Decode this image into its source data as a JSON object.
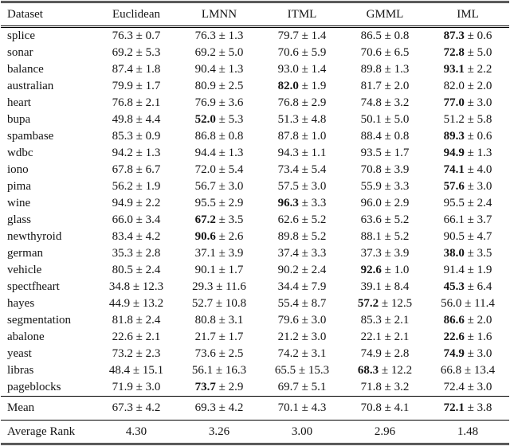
{
  "table": {
    "columns": [
      "Dataset",
      "Euclidean",
      "LMNN",
      "ITML",
      "GMML",
      "IML"
    ],
    "plus_minus": "±",
    "rows": [
      {
        "dataset": "splice",
        "values": [
          "76.3 ± 0.7",
          "76.3 ± 1.3",
          "79.7 ± 1.4",
          "86.5 ± 0.8",
          "87.3 ± 0.6"
        ],
        "bold": 4
      },
      {
        "dataset": "sonar",
        "values": [
          "69.2 ± 5.3",
          "69.2 ± 5.0",
          "70.6 ± 5.9",
          "70.6 ± 6.5",
          "72.8 ± 5.0"
        ],
        "bold": 4
      },
      {
        "dataset": "balance",
        "values": [
          "87.4 ± 1.8",
          "90.4 ± 1.3",
          "93.0 ± 1.4",
          "89.8 ± 1.3",
          "93.1 ± 2.2"
        ],
        "bold": 4
      },
      {
        "dataset": "australian",
        "values": [
          "79.9 ± 1.7",
          "80.9 ± 2.5",
          "82.0 ± 1.9",
          "81.7 ± 2.0",
          "82.0 ± 2.0"
        ],
        "bold": 2
      },
      {
        "dataset": "heart",
        "values": [
          "76.8 ± 2.1",
          "76.9 ± 3.6",
          "76.8 ± 2.9",
          "74.8 ± 3.2",
          "77.0 ± 3.0"
        ],
        "bold": 4
      },
      {
        "dataset": "bupa",
        "values": [
          "49.8 ± 4.4",
          "52.0 ± 5.3",
          "51.3 ± 4.8",
          "50.1 ± 5.0",
          "51.2 ± 5.8"
        ],
        "bold": 1
      },
      {
        "dataset": "spambase",
        "values": [
          "85.3 ± 0.9",
          "86.8 ± 0.8",
          "87.8 ± 1.0",
          "88.4 ± 0.8",
          "89.3 ± 0.6"
        ],
        "bold": 4
      },
      {
        "dataset": "wdbc",
        "values": [
          "94.2 ± 1.3",
          "94.4 ± 1.3",
          "94.3 ± 1.1",
          "93.5 ± 1.7",
          "94.9 ± 1.3"
        ],
        "bold": 4
      },
      {
        "dataset": "iono",
        "values": [
          "67.8 ± 6.7",
          "72.0 ± 5.4",
          "73.4 ± 5.4",
          "70.8 ± 3.9",
          "74.1 ± 4.0"
        ],
        "bold": 4
      },
      {
        "dataset": "pima",
        "values": [
          "56.2 ± 1.9",
          "56.7 ± 3.0",
          "57.5 ± 3.0",
          "55.9 ± 3.3",
          "57.6 ± 3.0"
        ],
        "bold": 4
      },
      {
        "dataset": "wine",
        "values": [
          "94.9 ± 2.2",
          "95.5 ± 2.9",
          "96.3 ± 3.3",
          "96.0 ± 2.9",
          "95.5 ± 2.4"
        ],
        "bold": 2
      },
      {
        "dataset": "glass",
        "values": [
          "66.0 ± 3.4",
          "67.2 ± 3.5",
          "62.6 ± 5.2",
          "63.6 ± 5.2",
          "66.1 ± 3.7"
        ],
        "bold": 1
      },
      {
        "dataset": "newthyroid",
        "values": [
          "83.4 ± 4.2",
          "90.6 ± 2.6",
          "89.8 ± 5.2",
          "88.1 ± 5.2",
          "90.5 ± 4.7"
        ],
        "bold": 1
      },
      {
        "dataset": "german",
        "values": [
          "35.3 ± 2.8",
          "37.1 ± 3.9",
          "37.4 ± 3.3",
          "37.3 ± 3.9",
          "38.0 ± 3.5"
        ],
        "bold": 4
      },
      {
        "dataset": "vehicle",
        "values": [
          "80.5 ± 2.4",
          "90.1 ± 1.7",
          "90.2 ± 2.4",
          "92.6 ± 1.0",
          "91.4 ± 1.9"
        ],
        "bold": 3
      },
      {
        "dataset": "spectfheart",
        "values": [
          "34.8 ± 12.3",
          "29.3 ± 11.6",
          "34.4 ± 7.9",
          "39.1 ± 8.4",
          "45.3 ± 6.4"
        ],
        "bold": 4
      },
      {
        "dataset": "hayes",
        "values": [
          "44.9 ± 13.2",
          "52.7 ± 10.8",
          "55.4 ± 8.7",
          "57.2 ± 12.5",
          "56.0 ± 11.4"
        ],
        "bold": 3
      },
      {
        "dataset": "segmentation",
        "values": [
          "81.8 ± 2.4",
          "80.8 ± 3.1",
          "79.6 ± 3.0",
          "85.3 ± 2.1",
          "86.6 ± 2.0"
        ],
        "bold": 4
      },
      {
        "dataset": "abalone",
        "values": [
          "22.6 ± 2.1",
          "21.7 ± 1.7",
          "21.2 ± 3.0",
          "22.1 ± 2.1",
          "22.6 ± 1.6"
        ],
        "bold": 4
      },
      {
        "dataset": "yeast",
        "values": [
          "73.2 ± 2.3",
          "73.6 ± 2.5",
          "74.2 ± 3.1",
          "74.9 ± 2.8",
          "74.9 ± 3.0"
        ],
        "bold": 4
      },
      {
        "dataset": "libras",
        "values": [
          "48.4 ± 15.1",
          "56.1 ± 16.3",
          "65.5 ± 15.3",
          "68.3 ± 12.2",
          "66.8 ± 13.4"
        ],
        "bold": 3
      },
      {
        "dataset": "pageblocks",
        "values": [
          "71.9 ± 3.0",
          "73.7 ± 2.9",
          "69.7 ± 5.1",
          "71.8 ± 3.2",
          "72.4 ± 3.0"
        ],
        "bold": 1
      }
    ],
    "mean_row": {
      "label": "Mean",
      "values": [
        "67.3 ± 4.2",
        "69.3 ± 4.2",
        "70.1 ± 4.3",
        "70.8 ± 4.1",
        "72.1 ± 3.8"
      ],
      "bold": 4
    },
    "rank_row": {
      "label": "Average Rank",
      "values": [
        "4.30",
        "3.26",
        "3.00",
        "2.96",
        "1.48"
      ],
      "bold": -1
    }
  }
}
